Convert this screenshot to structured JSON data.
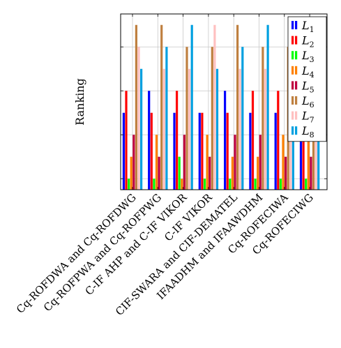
{
  "chart_data": {
    "type": "bar",
    "ylabel": "Ranking",
    "xlabel": "",
    "ylim": [
      0.5,
      8.5
    ],
    "grid": true,
    "legend_position": "top-right",
    "categories": [
      "Cq-ROFDWA and Cq-ROFDWG",
      "Cq-ROFPWA and Cq-ROFPWG",
      "C-IF AHP and C-IF VIKOR",
      "C-IF VIKOR",
      "CIF-SWARA and CIF-DEMATEL",
      "IFAADHM and IFAAWDHM",
      "Cq-ROFECIWA",
      "Cq-ROFECIWG"
    ],
    "series": [
      {
        "name": "L1",
        "color": "#0000ff",
        "values": [
          4,
          5,
          4,
          4,
          5,
          4,
          4,
          4
        ]
      },
      {
        "name": "L2",
        "color": "#ff0000",
        "values": [
          5,
          4,
          5,
          4,
          4,
          5,
          5,
          5
        ]
      },
      {
        "name": "L3",
        "color": "#00ff00",
        "values": [
          1,
          1,
          2,
          1,
          1,
          1,
          1,
          1
        ]
      },
      {
        "name": "L4",
        "color": "#ff8000",
        "values": [
          2,
          3,
          1,
          3,
          2,
          2,
          3,
          3
        ]
      },
      {
        "name": "L5",
        "color": "#bf0040",
        "values": [
          3,
          2,
          3,
          2,
          3,
          3,
          2,
          2
        ]
      },
      {
        "name": "L6",
        "color": "#bf8040",
        "values": [
          8,
          8,
          7,
          7,
          8,
          7,
          7,
          7
        ]
      },
      {
        "name": "L7",
        "color": "#ffc0c0",
        "values": [
          7,
          6,
          6,
          8,
          6,
          6,
          6,
          6
        ]
      },
      {
        "name": "L8",
        "color": "#00a0e0",
        "values": [
          6,
          7,
          8,
          6,
          7,
          8,
          8,
          8
        ]
      }
    ]
  }
}
